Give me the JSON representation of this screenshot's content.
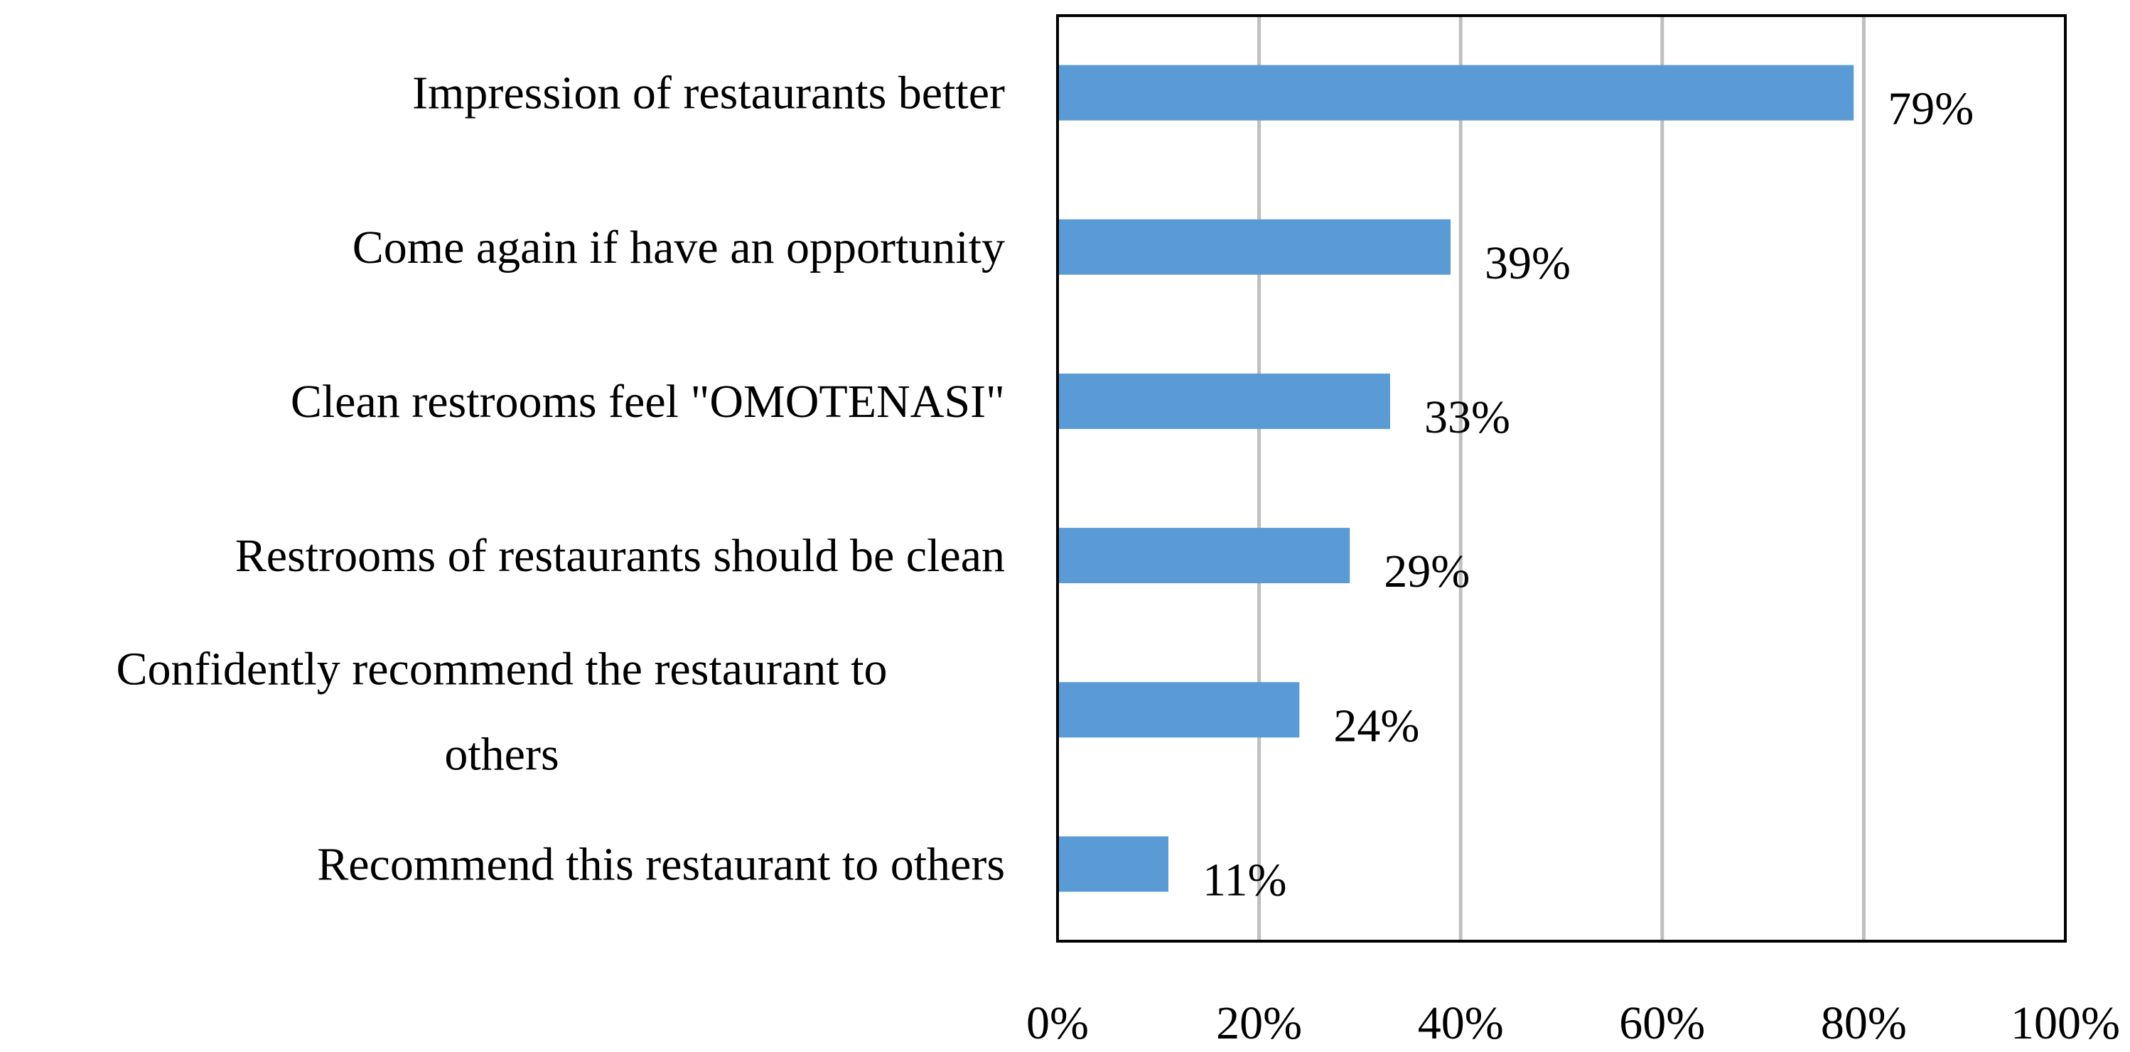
{
  "chart_data": {
    "type": "bar",
    "orientation": "horizontal",
    "categories": [
      [
        "Impression of restaurants better"
      ],
      [
        "Come again if have an opportunity"
      ],
      [
        "Clean restrooms feel \"OMOTENASI\""
      ],
      [
        "Restrooms of restaurants should be clean"
      ],
      [
        "Confidently recommend the restaurant to ",
        "others"
      ],
      [
        "Recommend this restaurant to others"
      ]
    ],
    "values": [
      79,
      39,
      33,
      29,
      24,
      11
    ],
    "value_labels": [
      "79%",
      "39%",
      "33%",
      "29%",
      "24%",
      "11%"
    ],
    "xlim": [
      0,
      100
    ],
    "x_ticks": [
      0,
      20,
      40,
      60,
      80,
      100
    ],
    "x_tick_labels": [
      "0%",
      "20%",
      "40%",
      "60%",
      "80%",
      "100%"
    ],
    "grid": "vertical",
    "legend": "none",
    "colors": {
      "bar": "#5b9bd5",
      "grid": "#bfbfbf",
      "axis": "#000000"
    }
  }
}
